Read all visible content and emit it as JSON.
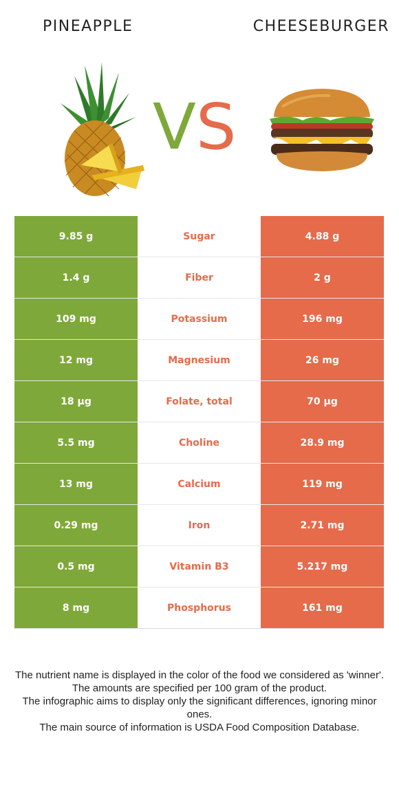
{
  "foods": {
    "left": {
      "name": "PINEAPPLE",
      "color": "#7fa83a",
      "image_icon": "pineapple-icon"
    },
    "right": {
      "name": "CHEESEBURGER",
      "color": "#e56b4b",
      "image_icon": "cheeseburger-icon"
    }
  },
  "vs": {
    "v": "V",
    "s": "S",
    "v_color": "#7fa83a",
    "s_color": "#e56b4b"
  },
  "nutrients": [
    {
      "left": "9.85 g",
      "name": "Sugar",
      "right": "4.88 g",
      "winner": "right"
    },
    {
      "left": "1.4 g",
      "name": "Fiber",
      "right": "2 g",
      "winner": "right"
    },
    {
      "left": "109 mg",
      "name": "Potassium",
      "right": "196 mg",
      "winner": "right"
    },
    {
      "left": "12 mg",
      "name": "Magnesium",
      "right": "26 mg",
      "winner": "right"
    },
    {
      "left": "18 µg",
      "name": "Folate, total",
      "right": "70 µg",
      "winner": "right"
    },
    {
      "left": "5.5 mg",
      "name": "Choline",
      "right": "28.9 mg",
      "winner": "right"
    },
    {
      "left": "13 mg",
      "name": "Calcium",
      "right": "119 mg",
      "winner": "right"
    },
    {
      "left": "0.29 mg",
      "name": "Iron",
      "right": "2.71 mg",
      "winner": "right"
    },
    {
      "left": "0.5 mg",
      "name": "Vitamin B3",
      "right": "5.217 mg",
      "winner": "right"
    },
    {
      "left": "8 mg",
      "name": "Phosphorus",
      "right": "161 mg",
      "winner": "right"
    }
  ],
  "notes": [
    "The nutrient name is displayed in the color of the food we considered as 'winner'.",
    "The amounts are specified per 100 gram of the product.",
    "The infographic aims to display only the significant differences, ignoring minor ones.",
    "The main source of information is USDA Food Composition Database."
  ]
}
